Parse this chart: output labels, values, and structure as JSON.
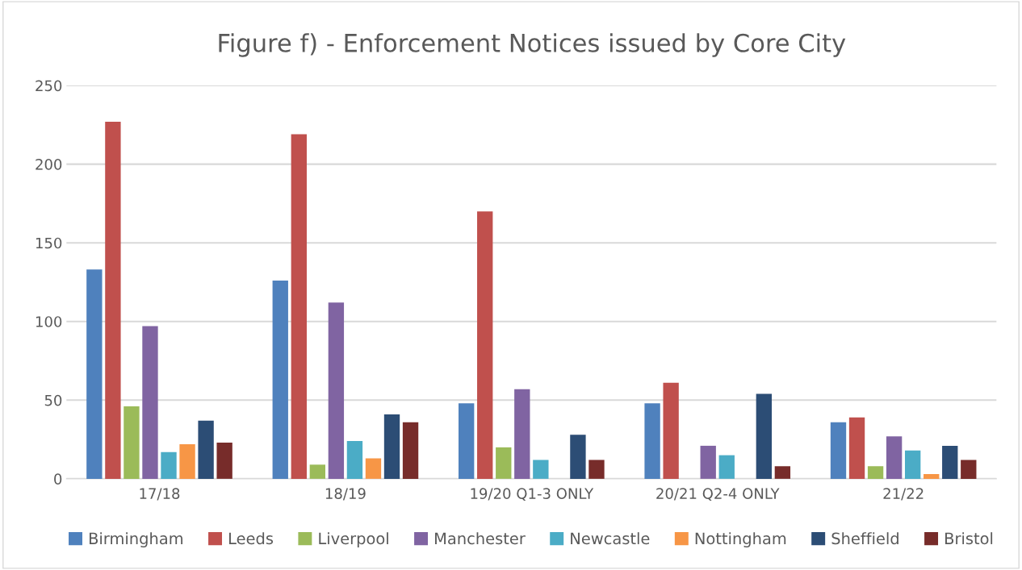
{
  "chart_data": {
    "type": "bar",
    "title": "Figure f) - Enforcement Notices issued by Core City",
    "categories": [
      "17/18",
      "18/19",
      "19/20 Q1-3 ONLY",
      "20/21 Q2-4 ONLY",
      "21/22"
    ],
    "series": [
      {
        "name": "Birmingham",
        "color": "#4f81bd",
        "values": [
          133,
          126,
          48,
          48,
          36
        ]
      },
      {
        "name": "Leeds",
        "color": "#c0504d",
        "values": [
          227,
          219,
          170,
          61,
          39
        ]
      },
      {
        "name": "Liverpool",
        "color": "#9bbb59",
        "values": [
          46,
          9,
          20,
          0,
          8
        ]
      },
      {
        "name": "Manchester",
        "color": "#8064a2",
        "values": [
          97,
          112,
          57,
          21,
          27
        ]
      },
      {
        "name": "Newcastle",
        "color": "#4bacc6",
        "values": [
          17,
          24,
          12,
          15,
          18
        ]
      },
      {
        "name": "Nottingham",
        "color": "#f79646",
        "values": [
          22,
          13,
          0,
          0,
          3
        ]
      },
      {
        "name": "Sheffield",
        "color": "#2c4d75",
        "values": [
          37,
          41,
          28,
          54,
          21
        ]
      },
      {
        "name": "Bristol",
        "color": "#772c2a",
        "values": [
          23,
          36,
          12,
          8,
          12
        ]
      }
    ],
    "ylim": [
      0,
      250
    ],
    "yticks": [
      0,
      50,
      100,
      150,
      200,
      250
    ],
    "grid": "y",
    "legend": "bottom"
  }
}
